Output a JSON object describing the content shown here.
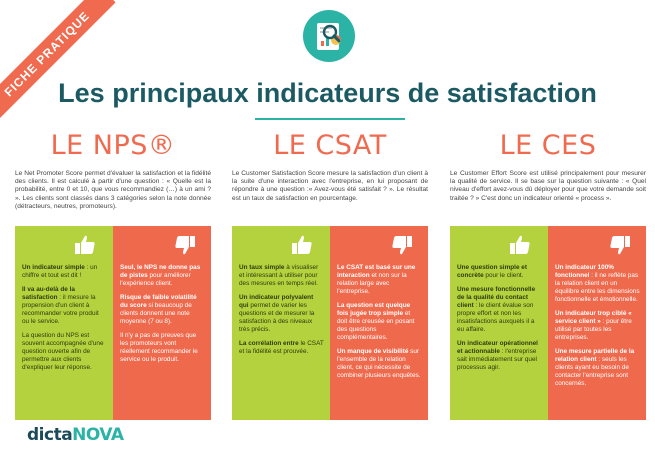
{
  "ribbon": "FICHE PRATIQUE",
  "title": "Les principaux indicateurs de satisfaction",
  "brand": {
    "part1": "dicta",
    "part2": "NOVA"
  },
  "columns": [
    {
      "heading": "LE NPS®",
      "description": "Le Net Promoter Score permet d'évaluer la satisfaction et la fidélité des clients. Il est calculé à partir d'une question : « Quelle est la probabilité, entre 0 et 10, que vous recommandiez (…) à un ami ? ». Les clients sont classés dans 3 catégories selon la note donnée (détracteurs, neutres, promoteurs).",
      "pros": [
        {
          "strong": "Un indicateur simple",
          "text": " : un chiffre et tout est dit !"
        },
        {
          "strong": "Il va au-delà de la satisfaction",
          "text": " : il mesure la propension d'un client à recommander votre produit ou le service."
        },
        {
          "strong": "",
          "text": "La question du NPS est souvent accompagnée d'une question ouverte afin de permettre aux clients d'expliquer leur réponse."
        }
      ],
      "cons": [
        {
          "strong": "Seul, le NPS ne donne pas de pistes",
          "text": " pour améliorer l'expérience client."
        },
        {
          "strong": "Risque de faible volatilité du score",
          "text": " si beaucoup de clients donnent une note moyenne (7 ou 8)."
        },
        {
          "strong": "",
          "text": "Il n'y a pas de preuves que les promoteurs vont réellement recommander le service ou le produit."
        }
      ]
    },
    {
      "heading": "LE CSAT",
      "description": "Le Customer Satisfaction Score mesure la satisfaction d'un client à la suite d'une interaction avec l'entreprise, en lui proposant de répondre à une question :« Avez-vous été satisfait ? ». Le résultat est un taux de satisfaction en pourcentage.",
      "pros": [
        {
          "strong": "Un taux simple",
          "text": " à visualiser et intéressant à utiliser pour des mesures en temps réel."
        },
        {
          "strong": "Un indicateur polyvalent qui",
          "text": " permet de varier les questions et de mesurer la satisfaction à des niveaux très précis."
        },
        {
          "strong": "La corrélation entre",
          "text": " le CSAT et la fidélité est prouvée."
        }
      ],
      "cons": [
        {
          "strong": "Le CSAT est basé sur une interaction",
          "text": " et non sur la relation large avec l'entreprise."
        },
        {
          "strong": "La question est quelque fois jugée trop simple",
          "text": " et doit être creusée en posant des questions complémentaires."
        },
        {
          "strong": "Un manque de visibilité",
          "text": " sur l'ensemble de la relation client, ce qui nécessite de combiner plusieurs enquêtes."
        }
      ]
    },
    {
      "heading": "LE CES",
      "description": "Le Customer Effort Score est utilisé principalement pour mesurer la qualité de service. Il se base sur la question suivante : « Quel niveau d'effort avez-vous dû déployer pour que votre demande soit traitée ? » C'est donc un indicateur orienté « process ».",
      "pros": [
        {
          "strong": "Une question simple et concrète",
          "text": " pour le client."
        },
        {
          "strong": "Une mesure fonctionnelle de la qualité du contact client",
          "text": " : le client évalue son propre effort et non les insatisfactions auxquels il a eu affaire."
        },
        {
          "strong": "Un indicateur opérationnel et actionnable",
          "text": " : l'entreprise sait immédiatement sur quel processus agir."
        }
      ],
      "cons": [
        {
          "strong": "Un indicateur 100% fonctionnel",
          "text": " : il ne reflète pas la relation client en un équilibre entre les dimensions fonctionnelle et émotionnelle."
        },
        {
          "strong": "Un indicateur trop ciblé « service client »",
          "text": " : pour être utilisé par toutes les entreprises."
        },
        {
          "strong": "Une mesure partielle de la relation client",
          "text": " : seuls les clients ayant eu besoin de contacter l'entreprise sont concernés."
        }
      ]
    }
  ],
  "icons": {
    "header": "magnifier-chart-icon",
    "pros": "thumbs-up-icon",
    "cons": "thumbs-down-icon"
  },
  "colors": {
    "accent": "#f06a4f",
    "teal": "#2bb3a6",
    "green": "#b4d23d",
    "title": "#1c5a63"
  }
}
